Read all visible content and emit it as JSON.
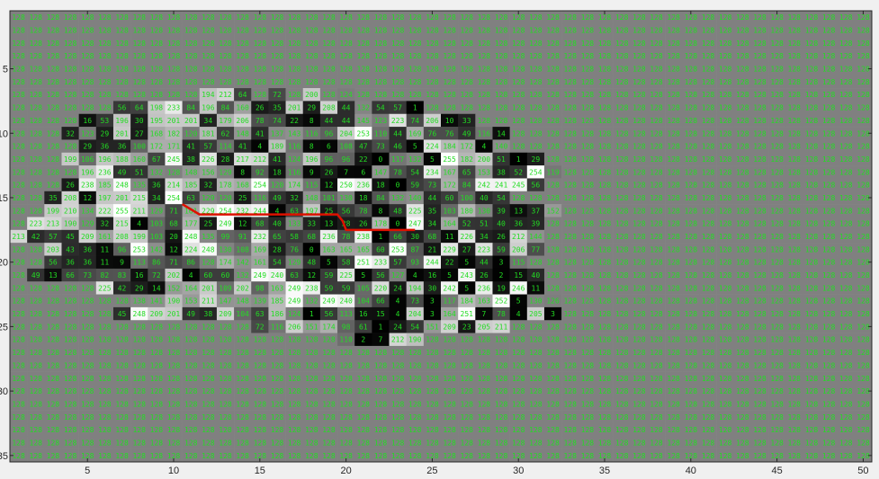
{
  "chart_data": {
    "type": "heatmap",
    "title": "",
    "xlabel": "",
    "ylabel": "",
    "xlim": [
      0.5,
      50.5
    ],
    "ylim": [
      35.5,
      0.5
    ],
    "xticks": [
      5,
      10,
      15,
      20,
      25,
      30,
      35,
      40,
      45,
      50
    ],
    "yticks": [
      5,
      10,
      15,
      20,
      25,
      30,
      35
    ],
    "colormap": "gray",
    "background_value": 128,
    "colors": {
      "frame": "#262626",
      "text": "#22dd22",
      "path": "#dd1100"
    },
    "rows": [
      {
        "y": 7,
        "x0": 9,
        "values": [
          128,
          128,
          128,
          194,
          212,
          64,
          128,
          72,
          128,
          200,
          128,
          124
        ]
      },
      {
        "y": 8,
        "x0": 7,
        "values": [
          56,
          64,
          198,
          233,
          84,
          196,
          84,
          160,
          26,
          35,
          201,
          29,
          208,
          44,
          132,
          54,
          57,
          1
        ]
      },
      {
        "y": 9,
        "x0": 5,
        "values": [
          16,
          53,
          196,
          30,
          195,
          201,
          201,
          34,
          179,
          206,
          78,
          74,
          22,
          8,
          44,
          44,
          145,
          123,
          223,
          74,
          206,
          10,
          33
        ]
      },
      {
        "y": 10,
        "x0": 4,
        "values": [
          32,
          123,
          29,
          201,
          27,
          168,
          182,
          120,
          181,
          62,
          148,
          41,
          137,
          143,
          116,
          96,
          204,
          253,
          110,
          44,
          169,
          76,
          76,
          49,
          116,
          14
        ]
      },
      {
        "y": 11,
        "x0": 5,
        "values": [
          29,
          36,
          36,
          100,
          172,
          171,
          41,
          57,
          114,
          41,
          4,
          189,
          116,
          8,
          6,
          108,
          47,
          73,
          46,
          5,
          224,
          184,
          172,
          4,
          140
        ]
      },
      {
        "y": 12,
        "x0": 4,
        "values": [
          199,
          106,
          196,
          188,
          160,
          67,
          245,
          38,
          226,
          28,
          217,
          212,
          41,
          124,
          196,
          96,
          96,
          22,
          0,
          117,
          132,
          5,
          255,
          182,
          200,
          51,
          1,
          29
        ]
      },
      {
        "y": 13,
        "x0": 5,
        "values": [
          196,
          236,
          49,
          51,
          132,
          128,
          148,
          156,
          129,
          8,
          92,
          18,
          116,
          9,
          26,
          7,
          6,
          147,
          78,
          54,
          234,
          167,
          65,
          153,
          38,
          52,
          254,
          119
        ]
      },
      {
        "y": 14,
        "x0": 4,
        "values": [
          26,
          238,
          185,
          248,
          135,
          36,
          214,
          185,
          32,
          178,
          168,
          254,
          120,
          174,
          115,
          12,
          250,
          236,
          18,
          0,
          59,
          73,
          172,
          84,
          242,
          241,
          245,
          56
        ]
      },
      {
        "y": 15,
        "x0": 3,
        "values": [
          35,
          208,
          12,
          197,
          201,
          215,
          34,
          254,
          63,
          129,
          120,
          25,
          116,
          49,
          32,
          148,
          101,
          130,
          18,
          84,
          132,
          140,
          44,
          60,
          100,
          40,
          54
        ]
      },
      {
        "y": 16,
        "x0": 3,
        "values": [
          199,
          210,
          134,
          222,
          255,
          211,
          129,
          71,
          161,
          229,
          254,
          232,
          244,
          4,
          63,
          197,
          25,
          56,
          78,
          8,
          48,
          225,
          35,
          103,
          180,
          130,
          39,
          13,
          37,
          152
        ]
      },
      {
        "y": 17,
        "x0": 2,
        "values": [
          223,
          213,
          190,
          129,
          32,
          215,
          4,
          103,
          68,
          177,
          25,
          249,
          12,
          68,
          40,
          133,
          33,
          13,
          28,
          26,
          178,
          0,
          247,
          34,
          164,
          52,
          51,
          40,
          36,
          39
        ]
      },
      {
        "y": 18,
        "x0": 1,
        "values": [
          213,
          42,
          57,
          45,
          209,
          161,
          208,
          199,
          103,
          20,
          248,
          135,
          99,
          91,
          232,
          65,
          58,
          68,
          236,
          78,
          238,
          1,
          66,
          30,
          68,
          11,
          226,
          34,
          26,
          212,
          144
        ]
      },
      {
        "y": 19,
        "x0": 3,
        "values": [
          203,
          43,
          36,
          11,
          96,
          253,
          142,
          12,
          224,
          248,
          130,
          108,
          169,
          28,
          76,
          0,
          163,
          165,
          165,
          60,
          253,
          87,
          21,
          229,
          27,
          223,
          59,
          206,
          77
        ]
      },
      {
        "y": 20,
        "x0": 3,
        "values": [
          56,
          36,
          36,
          11,
          9,
          113,
          86,
          71,
          86,
          128,
          174,
          142,
          161,
          54,
          129,
          48,
          5,
          58,
          251,
          233,
          57,
          93,
          244,
          22,
          5,
          44,
          3,
          115
        ]
      },
      {
        "y": 21,
        "x0": 2,
        "values": [
          49,
          13,
          66,
          73,
          82,
          83,
          16,
          72,
          202,
          4,
          60,
          60,
          132,
          249,
          240,
          63,
          12,
          59,
          225,
          5,
          56,
          127,
          4,
          16,
          5,
          243,
          26,
          2,
          15,
          40
        ]
      },
      {
        "y": 22,
        "x0": 6,
        "values": [
          225,
          42,
          29,
          14,
          152,
          164,
          201,
          109,
          202,
          98,
          163,
          249,
          238,
          59,
          59,
          105,
          220,
          24,
          194,
          30,
          242,
          5,
          236,
          19,
          246,
          11
        ]
      },
      {
        "y": 23,
        "x0": 8,
        "values": [
          138,
          141,
          190,
          153,
          211,
          147,
          148,
          139,
          185,
          249,
          132,
          249,
          240,
          104,
          66,
          4,
          73,
          3,
          117,
          184,
          163,
          252,
          5,
          130,
          126
        ]
      },
      {
        "y": 24,
        "x0": 7,
        "values": [
          45,
          248,
          209,
          201,
          49,
          38,
          209,
          104,
          63,
          186,
          124,
          1,
          56,
          113,
          16,
          15,
          4,
          204,
          3,
          164,
          251,
          7,
          78,
          4,
          205,
          3
        ]
      },
      {
        "y": 25,
        "x0": 14,
        "values": [
          128,
          72,
          116,
          206,
          151,
          174,
          98,
          61,
          1,
          24,
          54,
          151,
          209,
          23,
          205,
          211
        ]
      },
      {
        "y": 26,
        "x0": 20,
        "values": [
          110,
          2,
          7,
          212,
          190
        ]
      }
    ],
    "path": [
      [
        10.5,
        15.5
      ],
      [
        11.5,
        16.3
      ],
      [
        13.5,
        16.3
      ],
      [
        16.5,
        16.3
      ],
      [
        19.5,
        16.3
      ],
      [
        19.8,
        16.8
      ],
      [
        20.0,
        17.5
      ],
      [
        22.5,
        17.5
      ],
      [
        23.5,
        17.5
      ],
      [
        24.0,
        17.5
      ]
    ]
  }
}
